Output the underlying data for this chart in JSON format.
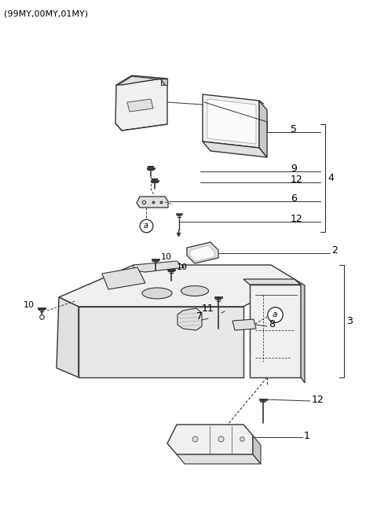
{
  "title": "(99MY,00MY,01MY)",
  "bg": "#ffffff",
  "lc": "#333333",
  "fc_light": "#f0f0f0",
  "fc_mid": "#e0e0e0",
  "fc_dark": "#c8c8c8",
  "figsize": [
    4.8,
    6.55
  ],
  "dpi": 100
}
